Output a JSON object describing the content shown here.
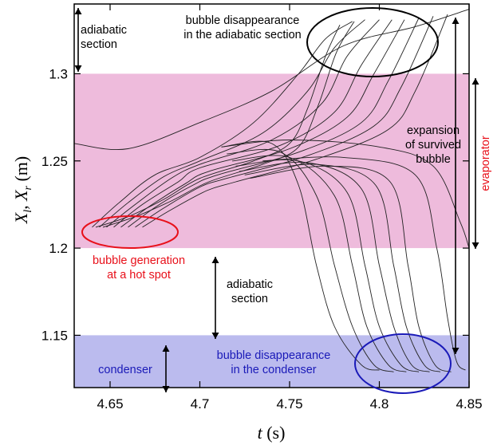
{
  "chart_data": {
    "type": "line",
    "xlabel": "t (s)",
    "ylabel": "Xl, Xr (m)",
    "ylabel_parts": {
      "main": "X",
      "sub1": "l",
      "sep": ", ",
      "sub2": "r",
      "unit": " (m)"
    },
    "xlabel_parts": {
      "var": "t",
      "unit": " (s)"
    },
    "xlim": [
      4.63,
      4.85
    ],
    "ylim": [
      1.12,
      1.34
    ],
    "xticks": [
      4.65,
      4.7,
      4.75,
      4.8,
      4.85
    ],
    "xtick_labels": [
      "4.65",
      "4.7",
      "4.75",
      "4.8",
      "4.85"
    ],
    "yticks": [
      1.15,
      1.2,
      1.25,
      1.3
    ],
    "ytick_labels": [
      "1.15",
      "1.2",
      "1.25",
      "1.3"
    ],
    "grid": false,
    "legend": "none",
    "regions": [
      {
        "name": "evaporator",
        "y_from": 1.2,
        "y_to": 1.3,
        "color": "#eebbdc"
      },
      {
        "name": "condenser",
        "y_from": 1.12,
        "y_to": 1.15,
        "color": "#bbbbee"
      }
    ],
    "series": [
      {
        "points": [
          [
            4.63,
            1.26
          ],
          [
            4.66,
            1.257
          ],
          [
            4.7,
            1.272
          ],
          [
            4.74,
            1.29
          ],
          [
            4.78,
            1.316
          ],
          [
            4.82,
            1.327
          ],
          [
            4.85,
            1.337
          ]
        ]
      },
      {
        "points": [
          [
            4.712,
            1.258
          ],
          [
            4.75,
            1.262
          ],
          [
            4.8,
            1.258
          ],
          [
            4.83,
            1.247
          ],
          [
            4.845,
            1.215
          ],
          [
            4.85,
            1.2
          ]
        ]
      },
      {
        "points": [
          [
            4.712,
            1.258
          ],
          [
            4.74,
            1.26
          ],
          [
            4.755,
            1.236
          ],
          [
            4.765,
            1.19
          ],
          [
            4.775,
            1.155
          ],
          [
            4.79,
            1.133
          ],
          [
            4.8,
            1.13
          ]
        ]
      },
      {
        "points": [
          [
            4.715,
            1.254
          ],
          [
            4.745,
            1.255
          ],
          [
            4.765,
            1.23
          ],
          [
            4.775,
            1.19
          ],
          [
            4.785,
            1.155
          ],
          [
            4.797,
            1.133
          ],
          [
            4.808,
            1.129
          ]
        ]
      },
      {
        "points": [
          [
            4.718,
            1.25
          ],
          [
            4.75,
            1.252
          ],
          [
            4.775,
            1.23
          ],
          [
            4.785,
            1.19
          ],
          [
            4.793,
            1.155
          ],
          [
            4.805,
            1.133
          ],
          [
            4.815,
            1.129
          ]
        ]
      },
      {
        "points": [
          [
            4.72,
            1.247
          ],
          [
            4.755,
            1.25
          ],
          [
            4.782,
            1.232
          ],
          [
            4.792,
            1.19
          ],
          [
            4.8,
            1.155
          ],
          [
            4.812,
            1.133
          ],
          [
            4.822,
            1.129
          ]
        ]
      },
      {
        "points": [
          [
            4.722,
            1.244
          ],
          [
            4.76,
            1.249
          ],
          [
            4.79,
            1.234
          ],
          [
            4.8,
            1.19
          ],
          [
            4.808,
            1.155
          ],
          [
            4.818,
            1.133
          ],
          [
            4.828,
            1.129
          ]
        ]
      },
      {
        "points": [
          [
            4.725,
            1.242
          ],
          [
            4.765,
            1.248
          ],
          [
            4.798,
            1.236
          ],
          [
            4.808,
            1.19
          ],
          [
            4.815,
            1.155
          ],
          [
            4.825,
            1.133
          ],
          [
            4.834,
            1.129
          ]
        ]
      },
      {
        "points": [
          [
            4.728,
            1.24
          ],
          [
            4.77,
            1.247
          ],
          [
            4.806,
            1.238
          ],
          [
            4.816,
            1.19
          ],
          [
            4.822,
            1.155
          ],
          [
            4.831,
            1.133
          ],
          [
            4.84,
            1.129
          ]
        ]
      },
      {
        "points": [
          [
            4.735,
            1.25
          ],
          [
            4.78,
            1.252
          ],
          [
            4.82,
            1.242
          ],
          [
            4.832,
            1.2
          ],
          [
            4.838,
            1.16
          ],
          [
            4.843,
            1.135
          ],
          [
            4.848,
            1.13
          ]
        ]
      },
      {
        "points": [
          [
            4.64,
            1.212
          ],
          [
            4.655,
            1.226
          ],
          [
            4.675,
            1.242
          ],
          [
            4.7,
            1.252
          ],
          [
            4.73,
            1.272
          ],
          [
            4.755,
            1.3
          ],
          [
            4.77,
            1.32
          ],
          [
            4.785,
            1.33
          ]
        ]
      },
      {
        "points": [
          [
            4.644,
            1.212
          ],
          [
            4.66,
            1.226
          ],
          [
            4.68,
            1.241
          ],
          [
            4.7,
            1.25
          ],
          [
            4.735,
            1.266
          ],
          [
            4.76,
            1.29
          ],
          [
            4.775,
            1.315
          ],
          [
            4.792,
            1.331
          ]
        ]
      },
      {
        "points": [
          [
            4.648,
            1.212
          ],
          [
            4.664,
            1.225
          ],
          [
            4.684,
            1.24
          ],
          [
            4.7,
            1.248
          ],
          [
            4.74,
            1.262
          ],
          [
            4.768,
            1.283
          ],
          [
            4.782,
            1.31
          ],
          [
            4.8,
            1.331
          ]
        ]
      },
      {
        "points": [
          [
            4.652,
            1.212
          ],
          [
            4.668,
            1.225
          ],
          [
            4.688,
            1.238
          ],
          [
            4.7,
            1.246
          ],
          [
            4.745,
            1.259
          ],
          [
            4.775,
            1.278
          ],
          [
            4.79,
            1.305
          ],
          [
            4.807,
            1.331
          ]
        ]
      },
      {
        "points": [
          [
            4.656,
            1.212
          ],
          [
            4.672,
            1.224
          ],
          [
            4.692,
            1.237
          ],
          [
            4.705,
            1.244
          ],
          [
            4.75,
            1.257
          ],
          [
            4.782,
            1.275
          ],
          [
            4.797,
            1.3
          ],
          [
            4.814,
            1.331
          ]
        ]
      },
      {
        "points": [
          [
            4.66,
            1.212
          ],
          [
            4.676,
            1.224
          ],
          [
            4.696,
            1.236
          ],
          [
            4.71,
            1.242
          ],
          [
            4.755,
            1.255
          ],
          [
            4.79,
            1.272
          ],
          [
            4.805,
            1.296
          ],
          [
            4.822,
            1.332
          ]
        ]
      },
      {
        "points": [
          [
            4.664,
            1.212
          ],
          [
            4.68,
            1.223
          ],
          [
            4.7,
            1.235
          ],
          [
            4.715,
            1.24
          ],
          [
            4.76,
            1.253
          ],
          [
            4.797,
            1.27
          ],
          [
            4.812,
            1.292
          ],
          [
            4.83,
            1.333
          ]
        ]
      },
      {
        "points": [
          [
            4.668,
            1.212
          ],
          [
            4.684,
            1.222
          ],
          [
            4.704,
            1.233
          ],
          [
            4.72,
            1.238
          ],
          [
            4.765,
            1.251
          ],
          [
            4.805,
            1.268
          ],
          [
            4.82,
            1.29
          ],
          [
            4.838,
            1.334
          ]
        ]
      },
      {
        "points": [
          [
            4.642,
            1.212
          ],
          [
            4.66,
            1.218
          ],
          [
            4.68,
            1.228
          ],
          [
            4.7,
            1.24
          ],
          [
            4.73,
            1.25
          ],
          [
            4.75,
            1.26
          ],
          [
            4.76,
            1.28
          ],
          [
            4.77,
            1.31
          ],
          [
            4.778,
            1.328
          ]
        ]
      },
      {
        "points": [
          [
            4.646,
            1.212
          ],
          [
            4.664,
            1.218
          ],
          [
            4.684,
            1.227
          ],
          [
            4.705,
            1.238
          ],
          [
            4.735,
            1.248
          ],
          [
            4.755,
            1.258
          ],
          [
            4.766,
            1.282
          ],
          [
            4.776,
            1.312
          ],
          [
            4.786,
            1.33
          ]
        ]
      }
    ]
  },
  "annotations": {
    "adiabatic_top": "adiabatic\nsection",
    "bubble_disappearance_adiabatic": "bubble disappearance\nin the adiabatic section",
    "expansion": "expansion\nof survived\nbubble",
    "evaporator": "evaporator",
    "bubble_generation": "bubble generation\nat a hot spot",
    "adiabatic_middle": "adiabatic\nsection",
    "condenser": "condenser",
    "bubble_disappearance_condenser": "bubble disappearance\nin the condenser"
  },
  "colors": {
    "evaporator_band": "#eebbdc",
    "condenser_band": "#bbbbee",
    "red": "#e8101a",
    "blue": "#1a1ab8",
    "black": "#000000"
  }
}
